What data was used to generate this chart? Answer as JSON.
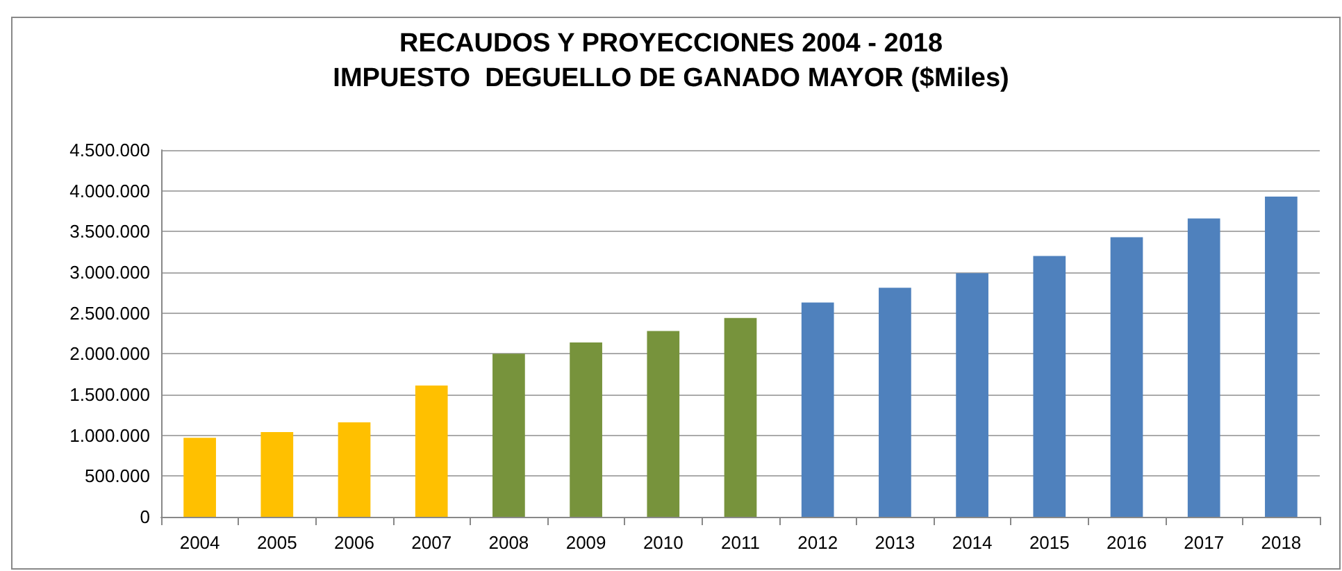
{
  "chart_data": {
    "type": "bar",
    "title": "RECAUDOS Y PROYECCIONES 2004 - 2018",
    "subtitle": "IMPUESTO  DEGUELLO DE GANADO MAYOR ($Miles)",
    "categories": [
      "2004",
      "2005",
      "2006",
      "2007",
      "2008",
      "2009",
      "2010",
      "2011",
      "2012",
      "2013",
      "2014",
      "2015",
      "2016",
      "2017",
      "2018"
    ],
    "values": [
      970000,
      1040000,
      1160000,
      1610000,
      2000000,
      2140000,
      2280000,
      2440000,
      2630000,
      2810000,
      2990000,
      3200000,
      3430000,
      3660000,
      3930000
    ],
    "colors": [
      "#ffc000",
      "#ffc000",
      "#ffc000",
      "#ffc000",
      "#77933c",
      "#77933c",
      "#77933c",
      "#77933c",
      "#4f81bd",
      "#4f81bd",
      "#4f81bd",
      "#4f81bd",
      "#4f81bd",
      "#4f81bd",
      "#4f81bd"
    ],
    "ylim": [
      0,
      4500000
    ],
    "yticks": [
      {
        "value": 0,
        "label": "0"
      },
      {
        "value": 500000,
        "label": "500.000"
      },
      {
        "value": 1000000,
        "label": "1.000.000"
      },
      {
        "value": 1500000,
        "label": "1.500.000"
      },
      {
        "value": 2000000,
        "label": "2.000.000"
      },
      {
        "value": 2500000,
        "label": "2.500.000"
      },
      {
        "value": 3000000,
        "label": "3.000.000"
      },
      {
        "value": 3500000,
        "label": "3.500.000"
      },
      {
        "value": 4000000,
        "label": "4.000.000"
      },
      {
        "value": 4500000,
        "label": "4.500.000"
      }
    ],
    "grid": "y"
  }
}
